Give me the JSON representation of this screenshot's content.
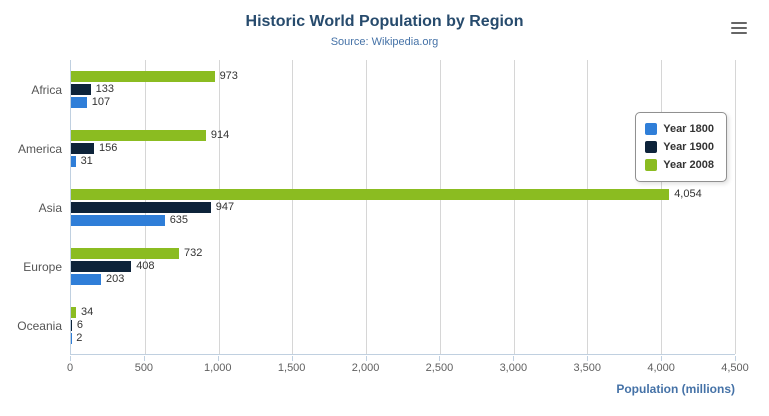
{
  "chart_data": {
    "type": "bar",
    "orientation": "horizontal",
    "title": "Historic World Population by Region",
    "subtitle": "Source: Wikipedia.org",
    "categories": [
      "Africa",
      "America",
      "Asia",
      "Europe",
      "Oceania"
    ],
    "series": [
      {
        "name": "Year 1800",
        "color": "#2f7ed8",
        "values": [
          107,
          31,
          635,
          203,
          2
        ]
      },
      {
        "name": "Year 1900",
        "color": "#0d233a",
        "values": [
          133,
          156,
          947,
          408,
          6
        ]
      },
      {
        "name": "Year 2008",
        "color": "#8bbc21",
        "values": [
          973,
          914,
          4054,
          732,
          34
        ]
      }
    ],
    "bar_display_order_top_to_bottom": [
      "Year 2008",
      "Year 1900",
      "Year 1800"
    ],
    "xlabel": "Population (millions)",
    "ylabel": "",
    "xlim": [
      0,
      4500
    ],
    "xticks": [
      0,
      500,
      1000,
      1500,
      2000,
      2500,
      3000,
      3500,
      4000,
      4500
    ],
    "tick_labels": [
      "0",
      "500",
      "1,000",
      "1,500",
      "2,000",
      "2,500",
      "3,000",
      "3,500",
      "4,000",
      "4,500"
    ],
    "grid": true,
    "legend_position": "right",
    "data_labels": true
  },
  "icons": {
    "export_menu": "hamburger-menu-icon"
  },
  "colors": {
    "title": "#274b6d",
    "subtitle": "#4572a7",
    "axis_title": "#4572a7",
    "tick_label": "#606060",
    "gridline": "#d6d6d6"
  }
}
